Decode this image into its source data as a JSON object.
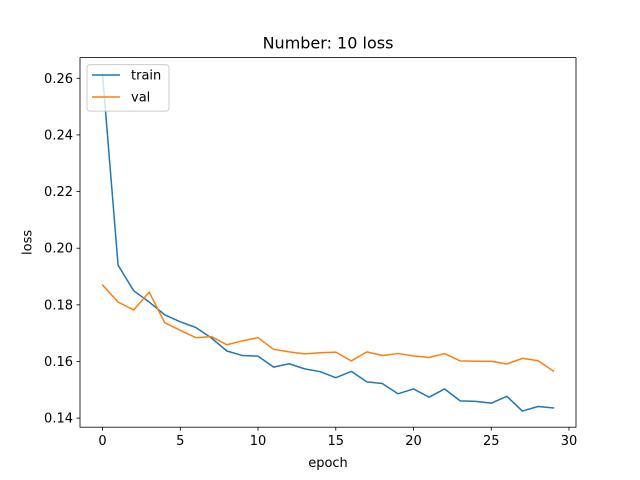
{
  "chart_data": {
    "type": "line",
    "title": "Number: 10 loss",
    "xlabel": "epoch",
    "ylabel": "loss",
    "xlim": [
      -1.45,
      30.45
    ],
    "ylim": [
      0.1368,
      0.2673
    ],
    "xticks": [
      0,
      5,
      10,
      15,
      20,
      25,
      30
    ],
    "yticks": [
      0.14,
      0.16,
      0.18,
      0.2,
      0.22,
      0.24,
      0.26
    ],
    "ytick_labels": [
      "0.14",
      "0.16",
      "0.18",
      "0.20",
      "0.22",
      "0.24",
      "0.26"
    ],
    "grid": false,
    "legend_position": "upper-left",
    "x": [
      0,
      1,
      2,
      3,
      4,
      5,
      6,
      7,
      8,
      9,
      10,
      11,
      12,
      13,
      14,
      15,
      16,
      17,
      18,
      19,
      20,
      21,
      22,
      23,
      24,
      25,
      26,
      27,
      28,
      29
    ],
    "series": [
      {
        "name": "train",
        "color": "#1f77b4",
        "values": [
          0.2613,
          0.194,
          0.185,
          0.181,
          0.1765,
          0.174,
          0.172,
          0.1683,
          0.1637,
          0.1621,
          0.1619,
          0.158,
          0.1592,
          0.1574,
          0.1564,
          0.1543,
          0.1565,
          0.1528,
          0.1522,
          0.1486,
          0.1503,
          0.1474,
          0.1503,
          0.1461,
          0.1459,
          0.1453,
          0.1477,
          0.1425,
          0.1441,
          0.1436
        ]
      },
      {
        "name": "val",
        "color": "#ff7f0e",
        "values": [
          0.187,
          0.181,
          0.1782,
          0.1845,
          0.1737,
          0.171,
          0.1684,
          0.1688,
          0.1659,
          0.1673,
          0.1684,
          0.1643,
          0.1634,
          0.1627,
          0.1631,
          0.1633,
          0.1602,
          0.1634,
          0.1621,
          0.1628,
          0.162,
          0.1614,
          0.1628,
          0.1602,
          0.1601,
          0.1601,
          0.1591,
          0.1611,
          0.1603,
          0.1566
        ]
      }
    ]
  }
}
